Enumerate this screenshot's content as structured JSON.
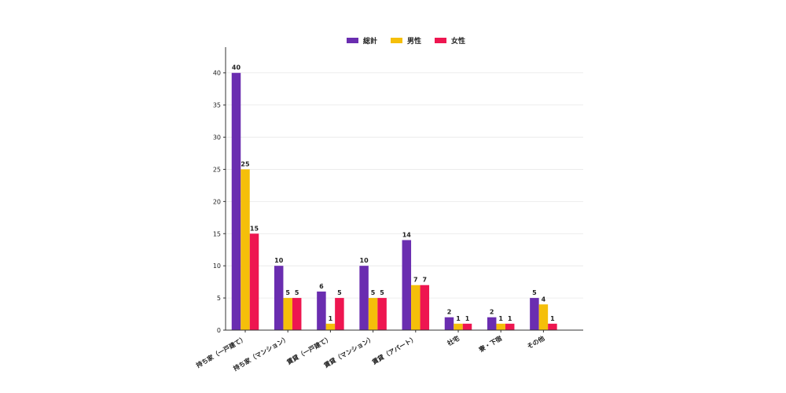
{
  "chart_data": {
    "type": "bar",
    "categories": [
      "持ち家（一戸建て）",
      "持ち家（マンション）",
      "賃貸（一戸建て）",
      "賃貸（マンション）",
      "賃貸（アパート）",
      "社宅",
      "寮・下宿",
      "その他"
    ],
    "series": [
      {
        "name": "総計",
        "color": "#6a2db0",
        "values": [
          40,
          10,
          6,
          10,
          14,
          2,
          2,
          5
        ]
      },
      {
        "name": "男性",
        "color": "#f5bf0a",
        "values": [
          25,
          5,
          1,
          5,
          7,
          1,
          1,
          4
        ]
      },
      {
        "name": "女性",
        "color": "#ee1650",
        "values": [
          15,
          5,
          5,
          5,
          7,
          1,
          1,
          1
        ]
      }
    ],
    "y_ticks": [
      0,
      5,
      10,
      15,
      20,
      25,
      30,
      35,
      40
    ],
    "ylim": [
      0,
      44
    ],
    "grid": true,
    "legend_position": "top-center",
    "title": "",
    "xlabel": "",
    "ylabel": ""
  }
}
